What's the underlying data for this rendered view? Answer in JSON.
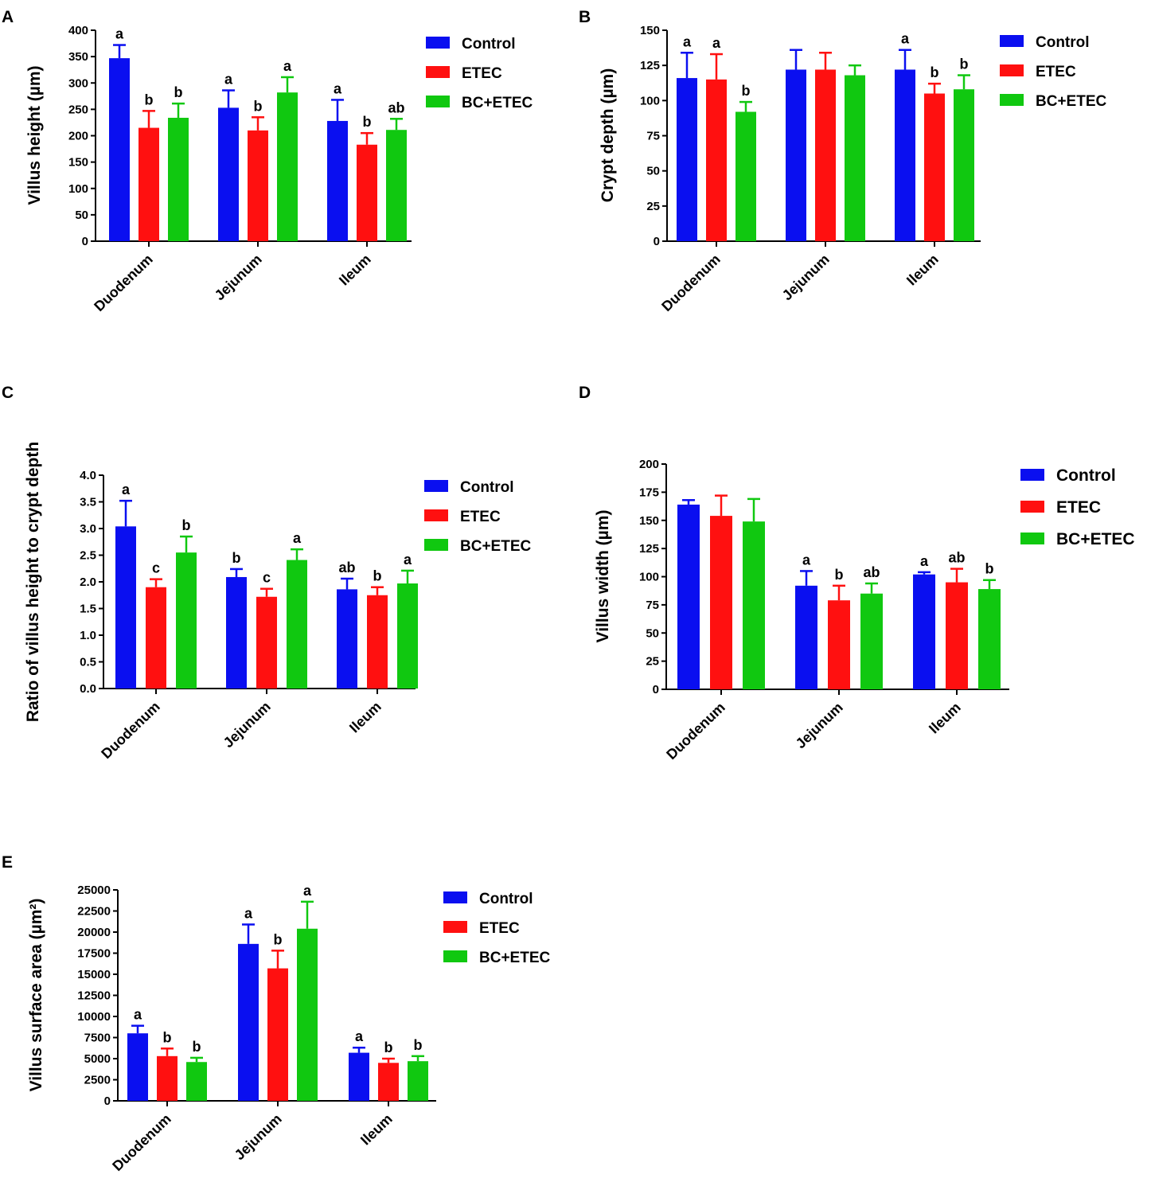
{
  "legend": [
    {
      "name": "Control",
      "color": "#0a0ff0"
    },
    {
      "name": "ETEC",
      "color": "#ff1010"
    },
    {
      "name": "BC+ETEC",
      "color": "#10c810"
    }
  ],
  "chart_data": [
    {
      "panel": "A",
      "type": "bar",
      "ylabel": "Villus height (µm)",
      "ylim": [
        0,
        400
      ],
      "ticks": [
        "0",
        "50",
        "100",
        "150",
        "200",
        "250",
        "300",
        "350",
        "400"
      ],
      "categories": [
        "Duodenum",
        "Jejunum",
        "Ileum"
      ],
      "series": [
        {
          "name": "Control",
          "values": [
            347,
            253,
            228
          ],
          "errors": [
            25,
            33,
            40
          ],
          "letters": [
            "a",
            "a",
            "a"
          ]
        },
        {
          "name": "ETEC",
          "values": [
            215,
            210,
            183
          ],
          "errors": [
            32,
            25,
            22
          ],
          "letters": [
            "b",
            "b",
            "b"
          ]
        },
        {
          "name": "BC+ETEC",
          "values": [
            234,
            282,
            211
          ],
          "errors": [
            27,
            29,
            21
          ],
          "letters": [
            "b",
            "a",
            "ab"
          ]
        }
      ]
    },
    {
      "panel": "B",
      "type": "bar",
      "ylabel": "Crypt depth (µm)",
      "ylim": [
        0,
        150
      ],
      "ticks": [
        "0",
        "25",
        "50",
        "75",
        "100",
        "125",
        "150"
      ],
      "categories": [
        "Duodenum",
        "Jejunum",
        "Ileum"
      ],
      "series": [
        {
          "name": "Control",
          "values": [
            116,
            122,
            122
          ],
          "errors": [
            18,
            14,
            14
          ],
          "letters": [
            "a",
            "",
            "a"
          ]
        },
        {
          "name": "ETEC",
          "values": [
            115,
            122,
            105
          ],
          "errors": [
            18,
            12,
            7
          ],
          "letters": [
            "a",
            "",
            "b"
          ]
        },
        {
          "name": "BC+ETEC",
          "values": [
            92,
            118,
            108
          ],
          "errors": [
            7,
            7,
            10
          ],
          "letters": [
            "b",
            "",
            "b"
          ]
        }
      ]
    },
    {
      "panel": "C",
      "type": "bar",
      "ylabel": "Ratio of villus height to crypt depth",
      "ylim": [
        0,
        4
      ],
      "ticks": [
        "0.0",
        "0.5",
        "1.0",
        "1.5",
        "2.0",
        "2.5",
        "3.0",
        "3.5",
        "4.0"
      ],
      "categories": [
        "Duodenum",
        "Jejunum",
        "Ileum"
      ],
      "series": [
        {
          "name": "Control",
          "values": [
            3.04,
            2.09,
            1.86
          ],
          "errors": [
            0.48,
            0.15,
            0.2
          ],
          "letters": [
            "a",
            "b",
            "ab"
          ]
        },
        {
          "name": "ETEC",
          "values": [
            1.9,
            1.72,
            1.75
          ],
          "errors": [
            0.15,
            0.15,
            0.15
          ],
          "letters": [
            "c",
            "c",
            "b"
          ]
        },
        {
          "name": "BC+ETEC",
          "values": [
            2.55,
            2.41,
            1.97
          ],
          "errors": [
            0.3,
            0.2,
            0.24
          ],
          "letters": [
            "b",
            "a",
            "a"
          ]
        }
      ]
    },
    {
      "panel": "D",
      "type": "bar",
      "ylabel": "Villus width  (µm)",
      "ylim": [
        0,
        200
      ],
      "ticks": [
        "0",
        "25",
        "50",
        "75",
        "100",
        "125",
        "150",
        "175",
        "200"
      ],
      "categories": [
        "Duodenum",
        "Jejunum",
        "Ileum"
      ],
      "series": [
        {
          "name": "Control",
          "values": [
            164,
            92,
            102
          ],
          "errors": [
            4,
            13,
            2
          ],
          "letters": [
            "",
            "a",
            "a"
          ]
        },
        {
          "name": "ETEC",
          "values": [
            154,
            79,
            95
          ],
          "errors": [
            18,
            13,
            12
          ],
          "letters": [
            "",
            "b",
            "ab"
          ]
        },
        {
          "name": "BC+ETEC",
          "values": [
            149,
            85,
            89
          ],
          "errors": [
            20,
            9,
            8
          ],
          "letters": [
            "",
            "ab",
            "b"
          ]
        }
      ]
    },
    {
      "panel": "E",
      "type": "bar",
      "ylabel": "Villus surface area (µm²)",
      "ylim": [
        0,
        25000
      ],
      "ticks": [
        "0",
        "2500",
        "5000",
        "7500",
        "10000",
        "12500",
        "15000",
        "17500",
        "20000",
        "22500",
        "25000"
      ],
      "categories": [
        "Duodenum",
        "Jejunum",
        "Ileum"
      ],
      "series": [
        {
          "name": "Control",
          "values": [
            8000,
            18600,
            5700
          ],
          "errors": [
            900,
            2300,
            600
          ],
          "letters": [
            "a",
            "a",
            "a"
          ]
        },
        {
          "name": "ETEC",
          "values": [
            5300,
            15700,
            4500
          ],
          "errors": [
            900,
            2100,
            500
          ],
          "letters": [
            "b",
            "b",
            "b"
          ]
        },
        {
          "name": "BC+ETEC",
          "values": [
            4600,
            20400,
            4700
          ],
          "errors": [
            500,
            3200,
            600
          ],
          "letters": [
            "b",
            "a",
            "b"
          ]
        }
      ]
    }
  ]
}
